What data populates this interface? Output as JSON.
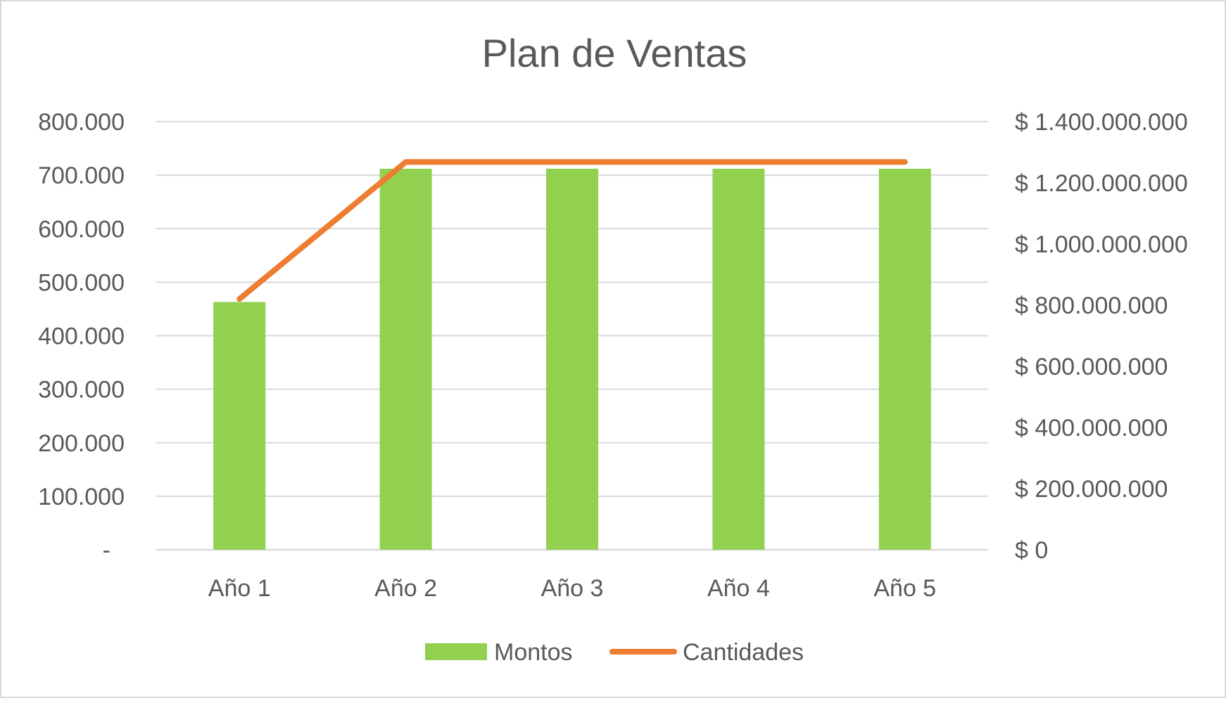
{
  "chart_data": {
    "type": "bar",
    "title": "Plan de Ventas",
    "categories": [
      "Año 1",
      "Año 2",
      "Año 3",
      "Año 4",
      "Año 5"
    ],
    "series": [
      {
        "name": "Montos",
        "type": "bar",
        "axis": "left",
        "color": "#92d050",
        "values": [
          463000,
          712000,
          712000,
          712000,
          712000
        ]
      },
      {
        "name": "Cantidades",
        "type": "line",
        "axis": "right",
        "color": "#ed7d31",
        "values": [
          820000000,
          1268000000,
          1268000000,
          1268000000,
          1268000000
        ]
      }
    ],
    "y_left": {
      "range": [
        0,
        800000
      ],
      "ticks": [
        0,
        100000,
        200000,
        300000,
        400000,
        500000,
        600000,
        700000,
        800000
      ],
      "tick_labels": [
        "-",
        "100.000",
        "200.000",
        "300.000",
        "400.000",
        "500.000",
        "600.000",
        "700.000",
        "800.000"
      ]
    },
    "y_right": {
      "range": [
        0,
        1400000000
      ],
      "ticks": [
        0,
        200000000,
        400000000,
        600000000,
        800000000,
        1000000000,
        1200000000,
        1400000000
      ],
      "tick_labels": [
        "$ 0",
        "$ 200.000.000",
        "$ 400.000.000",
        "$ 600.000.000",
        "$ 800.000.000",
        "$ 1.000.000.000",
        "$ 1.200.000.000",
        "$ 1.400.000.000"
      ]
    },
    "grid": true,
    "legend_position": "bottom",
    "colors": {
      "grid": "#d9d9d9",
      "text": "#595959",
      "border": "#d9d9d9"
    }
  }
}
